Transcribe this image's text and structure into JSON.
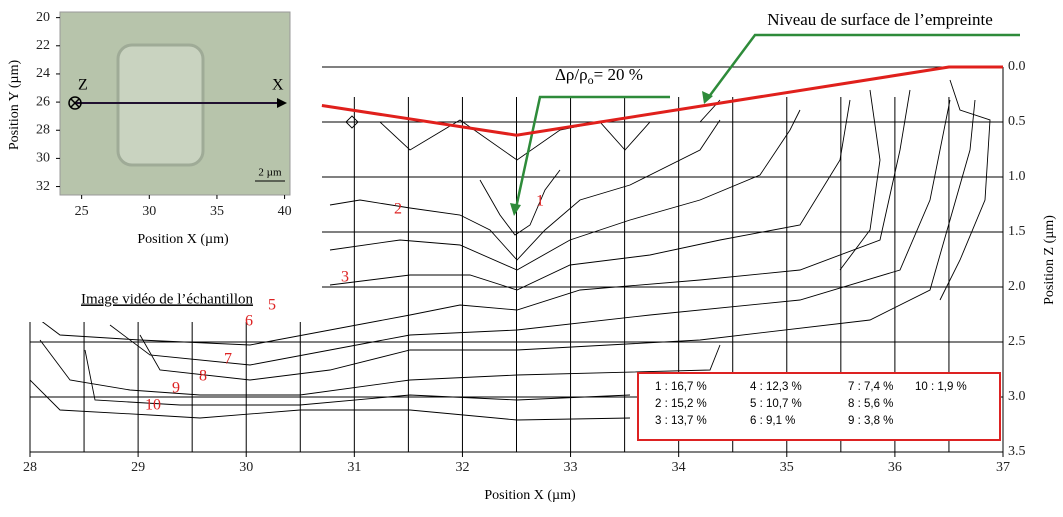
{
  "chart_data": [
    {
      "type": "contour",
      "x_label": "Position X (µm)",
      "y_label": "Position Z (µm)",
      "xlim": [
        28,
        37
      ],
      "xticks": [
        28,
        29,
        30,
        31,
        32,
        33,
        34,
        35,
        36,
        37
      ],
      "ylim": [
        0,
        3.5
      ],
      "yticks": [
        {
          "value": 0,
          "label": "0.0"
        },
        0.5,
        {
          "value": 1,
          "label": "1.0"
        },
        1.5,
        {
          "value": 2,
          "label": "2.0"
        },
        2.5,
        {
          "value": 3,
          "label": "3.0"
        },
        3.5
      ],
      "grid": true,
      "surface": {
        "color": "#e0201c",
        "x": [
          30.7,
          32.5,
          36.5,
          37.0
        ],
        "values": [
          0.35,
          0.62,
          0.0,
          0.0
        ]
      },
      "surface_annotation": "Niveau de surface de l’empreinte",
      "delta_annotation": {
        "prefix": "Δρ/ρ",
        "sub": "o",
        "suffix": "= 20 %"
      },
      "contour_labels": [
        "1",
        "2",
        "3",
        "5",
        "6",
        "7",
        "8",
        "9",
        "10"
      ],
      "legend": [
        "1 : 16,7 %",
        "2 : 15,2 %",
        "3 : 13,7 %",
        "4 : 12,3 %",
        "5 : 10,7 %",
        "6 :   9,1 %",
        "7 : 7,4 %",
        "8 : 5,6 %",
        "9 : 3,8 %",
        "10 : 1,9 %"
      ]
    },
    {
      "type": "image",
      "x_label": "Position X (µm)",
      "y_label": "Position Y (µm)",
      "xlim": [
        23.4,
        40.4
      ],
      "xticks": [
        25,
        30,
        35,
        40
      ],
      "ylim": [
        19.6,
        32.6
      ],
      "yticks": [
        20,
        22,
        24,
        26,
        28,
        30,
        32
      ],
      "axis_z": "Z",
      "axis_x": "X",
      "scale_bar": "2 µm",
      "caption": "Image vidéo de l’échantillon"
    }
  ]
}
